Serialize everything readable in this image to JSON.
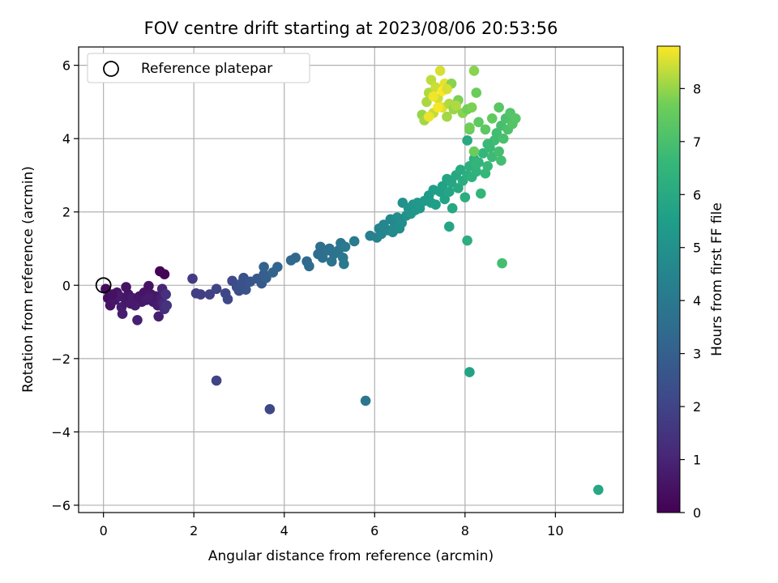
{
  "chart_data": {
    "type": "scatter",
    "title": "FOV centre drift starting at 2023/08/06 20:53:56",
    "xlabel": "Angular distance from reference (arcmin)",
    "ylabel": "Rotation from reference (arcmin)",
    "xlim": [
      -0.55,
      11.5
    ],
    "ylim": [
      -6.2,
      6.5
    ],
    "xticks": [
      0,
      2,
      4,
      6,
      8,
      10
    ],
    "yticks": [
      -6,
      -4,
      -2,
      0,
      2,
      4,
      6
    ],
    "xtick_labels": [
      "0",
      "2",
      "4",
      "6",
      "8",
      "10"
    ],
    "ytick_labels": [
      "−6",
      "−4",
      "−2",
      "0",
      "2",
      "4",
      "6"
    ],
    "grid": true,
    "legend": {
      "placement": "top-left",
      "entries": [
        {
          "label": "Reference platepar",
          "marker": "open-circle"
        }
      ]
    },
    "reference_point": {
      "x": 0,
      "y": 0
    },
    "colorbar": {
      "label": "Hours from first FF file",
      "range": [
        0,
        8.8
      ],
      "ticks": [
        0,
        1,
        2,
        3,
        4,
        5,
        6,
        7,
        8
      ],
      "tick_labels": [
        "0",
        "1",
        "2",
        "3",
        "4",
        "5",
        "6",
        "7",
        "8"
      ],
      "colormap": "viridis"
    },
    "points": [
      {
        "x": 1.25,
        "y": 0.38,
        "t": 0.05
      },
      {
        "x": 1.35,
        "y": 0.3,
        "t": 0.1
      },
      {
        "x": 0.05,
        "y": -0.1,
        "t": 0.3
      },
      {
        "x": 0.1,
        "y": -0.35,
        "t": 0.4
      },
      {
        "x": 0.15,
        "y": -0.55,
        "t": 0.5
      },
      {
        "x": 0.25,
        "y": -0.4,
        "t": 0.6
      },
      {
        "x": 0.3,
        "y": -0.2,
        "t": 0.55
      },
      {
        "x": 0.35,
        "y": -0.3,
        "t": 0.7
      },
      {
        "x": 0.4,
        "y": -0.6,
        "t": 0.75
      },
      {
        "x": 0.42,
        "y": -0.78,
        "t": 0.8
      },
      {
        "x": 0.5,
        "y": -0.45,
        "t": 0.65
      },
      {
        "x": 0.55,
        "y": -0.25,
        "t": 0.6
      },
      {
        "x": 0.5,
        "y": -0.05,
        "t": 0.5
      },
      {
        "x": 0.65,
        "y": -0.35,
        "t": 0.7
      },
      {
        "x": 0.7,
        "y": -0.55,
        "t": 0.8
      },
      {
        "x": 0.75,
        "y": -0.95,
        "t": 0.9
      },
      {
        "x": 0.8,
        "y": -0.3,
        "t": 0.6
      },
      {
        "x": 0.85,
        "y": -0.45,
        "t": 0.65
      },
      {
        "x": 0.9,
        "y": -0.2,
        "t": 0.55
      },
      {
        "x": 0.95,
        "y": -0.4,
        "t": 0.7
      },
      {
        "x": 1.0,
        "y": -0.02,
        "t": 0.5
      },
      {
        "x": 1.05,
        "y": -0.25,
        "t": 0.6
      },
      {
        "x": 1.1,
        "y": -0.45,
        "t": 0.7
      },
      {
        "x": 1.15,
        "y": -0.3,
        "t": 0.65
      },
      {
        "x": 1.2,
        "y": -0.55,
        "t": 0.8
      },
      {
        "x": 1.22,
        "y": -0.85,
        "t": 0.85
      },
      {
        "x": 1.28,
        "y": -0.35,
        "t": 0.9
      },
      {
        "x": 1.3,
        "y": -0.1,
        "t": 1.0
      },
      {
        "x": 1.32,
        "y": -0.5,
        "t": 1.1
      },
      {
        "x": 1.35,
        "y": -0.65,
        "t": 1.3
      },
      {
        "x": 1.38,
        "y": -0.25,
        "t": 1.4
      },
      {
        "x": 1.4,
        "y": -0.55,
        "t": 1.5
      },
      {
        "x": 0.2,
        "y": -0.25,
        "t": 0.45
      },
      {
        "x": 0.6,
        "y": -0.5,
        "t": 0.7
      },
      {
        "x": 1.0,
        "y": -0.35,
        "t": 0.75
      },
      {
        "x": 1.97,
        "y": 0.18,
        "t": 1.7
      },
      {
        "x": 2.05,
        "y": -0.22,
        "t": 1.8
      },
      {
        "x": 2.15,
        "y": -0.25,
        "t": 1.85
      },
      {
        "x": 2.35,
        "y": -0.25,
        "t": 1.9
      },
      {
        "x": 2.5,
        "y": -0.1,
        "t": 2.0
      },
      {
        "x": 2.7,
        "y": -0.22,
        "t": 2.1
      },
      {
        "x": 2.75,
        "y": -0.38,
        "t": 2.15
      },
      {
        "x": 2.85,
        "y": 0.12,
        "t": 2.2
      },
      {
        "x": 2.95,
        "y": -0.05,
        "t": 2.3
      },
      {
        "x": 3.0,
        "y": -0.15,
        "t": 2.4
      },
      {
        "x": 3.05,
        "y": 0.05,
        "t": 2.45
      },
      {
        "x": 3.1,
        "y": 0.2,
        "t": 2.5
      },
      {
        "x": 3.15,
        "y": -0.12,
        "t": 2.55
      },
      {
        "x": 3.25,
        "y": 0.1,
        "t": 2.6
      },
      {
        "x": 3.4,
        "y": 0.18,
        "t": 2.7
      },
      {
        "x": 3.5,
        "y": 0.05,
        "t": 2.8
      },
      {
        "x": 3.55,
        "y": 0.3,
        "t": 2.9
      },
      {
        "x": 3.6,
        "y": 0.2,
        "t": 3.0
      },
      {
        "x": 3.55,
        "y": 0.5,
        "t": 3.1
      },
      {
        "x": 3.75,
        "y": 0.35,
        "t": 3.15
      },
      {
        "x": 3.85,
        "y": 0.5,
        "t": 3.2
      },
      {
        "x": 4.15,
        "y": 0.68,
        "t": 3.3
      },
      {
        "x": 4.25,
        "y": 0.75,
        "t": 3.35
      },
      {
        "x": 4.5,
        "y": 0.65,
        "t": 3.4
      },
      {
        "x": 4.55,
        "y": 0.52,
        "t": 3.45
      },
      {
        "x": 4.75,
        "y": 0.85,
        "t": 3.5
      },
      {
        "x": 4.8,
        "y": 1.05,
        "t": 3.55
      },
      {
        "x": 4.85,
        "y": 0.75,
        "t": 3.6
      },
      {
        "x": 4.95,
        "y": 0.95,
        "t": 3.65
      },
      {
        "x": 5.0,
        "y": 1.0,
        "t": 3.7
      },
      {
        "x": 5.05,
        "y": 0.65,
        "t": 3.75
      },
      {
        "x": 5.1,
        "y": 0.85,
        "t": 3.8
      },
      {
        "x": 5.2,
        "y": 0.95,
        "t": 3.85
      },
      {
        "x": 5.25,
        "y": 1.15,
        "t": 3.9
      },
      {
        "x": 5.3,
        "y": 0.75,
        "t": 3.95
      },
      {
        "x": 5.35,
        "y": 1.05,
        "t": 4.0
      },
      {
        "x": 5.32,
        "y": 0.58,
        "t": 4.0
      },
      {
        "x": 5.55,
        "y": 1.2,
        "t": 4.1
      },
      {
        "x": 5.9,
        "y": 1.35,
        "t": 4.3
      },
      {
        "x": 6.05,
        "y": 1.3,
        "t": 4.4
      },
      {
        "x": 6.1,
        "y": 1.55,
        "t": 4.45
      },
      {
        "x": 6.15,
        "y": 1.4,
        "t": 4.5
      },
      {
        "x": 6.2,
        "y": 1.65,
        "t": 4.55
      },
      {
        "x": 6.3,
        "y": 1.5,
        "t": 4.6
      },
      {
        "x": 6.35,
        "y": 1.8,
        "t": 4.65
      },
      {
        "x": 6.4,
        "y": 1.45,
        "t": 4.7
      },
      {
        "x": 6.45,
        "y": 1.65,
        "t": 4.75
      },
      {
        "x": 6.5,
        "y": 1.85,
        "t": 4.8
      },
      {
        "x": 6.55,
        "y": 1.55,
        "t": 4.85
      },
      {
        "x": 6.6,
        "y": 1.7,
        "t": 4.9
      },
      {
        "x": 6.62,
        "y": 2.25,
        "t": 4.95
      },
      {
        "x": 6.7,
        "y": 1.9,
        "t": 5.0
      },
      {
        "x": 6.75,
        "y": 2.1,
        "t": 5.05
      },
      {
        "x": 6.8,
        "y": 1.95,
        "t": 5.1
      },
      {
        "x": 6.85,
        "y": 2.2,
        "t": 5.15
      },
      {
        "x": 6.9,
        "y": 2.05,
        "t": 5.2
      },
      {
        "x": 6.95,
        "y": 2.25,
        "t": 5.25
      },
      {
        "x": 7.0,
        "y": 2.1,
        "t": 5.3
      },
      {
        "x": 7.1,
        "y": 2.3,
        "t": 5.35
      },
      {
        "x": 7.2,
        "y": 2.45,
        "t": 5.4
      },
      {
        "x": 7.25,
        "y": 2.25,
        "t": 5.45
      },
      {
        "x": 7.3,
        "y": 2.6,
        "t": 5.5
      },
      {
        "x": 7.35,
        "y": 2.2,
        "t": 5.55
      },
      {
        "x": 7.45,
        "y": 2.55,
        "t": 5.6
      },
      {
        "x": 7.5,
        "y": 2.7,
        "t": 5.65
      },
      {
        "x": 7.55,
        "y": 2.35,
        "t": 5.7
      },
      {
        "x": 7.6,
        "y": 2.9,
        "t": 5.75
      },
      {
        "x": 7.65,
        "y": 2.55,
        "t": 5.8
      },
      {
        "x": 7.7,
        "y": 2.8,
        "t": 5.85
      },
      {
        "x": 7.72,
        "y": 2.1,
        "t": 5.9
      },
      {
        "x": 7.8,
        "y": 3.0,
        "t": 5.95
      },
      {
        "x": 7.85,
        "y": 2.65,
        "t": 6.0
      },
      {
        "x": 7.9,
        "y": 3.15,
        "t": 6.05
      },
      {
        "x": 7.95,
        "y": 2.85,
        "t": 6.1
      },
      {
        "x": 8.0,
        "y": 2.4,
        "t": 6.15
      },
      {
        "x": 8.05,
        "y": 3.0,
        "t": 6.2
      },
      {
        "x": 8.1,
        "y": 3.25,
        "t": 6.25
      },
      {
        "x": 8.15,
        "y": 2.95,
        "t": 6.3
      },
      {
        "x": 8.2,
        "y": 3.45,
        "t": 6.35
      },
      {
        "x": 8.25,
        "y": 3.1,
        "t": 6.4
      },
      {
        "x": 8.3,
        "y": 3.35,
        "t": 6.45
      },
      {
        "x": 8.35,
        "y": 2.5,
        "t": 6.5
      },
      {
        "x": 8.4,
        "y": 3.6,
        "t": 6.55
      },
      {
        "x": 8.45,
        "y": 3.05,
        "t": 6.6
      },
      {
        "x": 8.5,
        "y": 3.25,
        "t": 6.65
      },
      {
        "x": 8.55,
        "y": 3.75,
        "t": 6.7
      },
      {
        "x": 8.6,
        "y": 3.5,
        "t": 6.75
      },
      {
        "x": 8.65,
        "y": 3.95,
        "t": 6.8
      },
      {
        "x": 8.7,
        "y": 4.15,
        "t": 6.85
      },
      {
        "x": 8.75,
        "y": 3.65,
        "t": 6.9
      },
      {
        "x": 8.8,
        "y": 4.35,
        "t": 6.95
      },
      {
        "x": 8.85,
        "y": 4.0,
        "t": 7.0
      },
      {
        "x": 8.9,
        "y": 4.55,
        "t": 7.05
      },
      {
        "x": 8.95,
        "y": 4.25,
        "t": 7.1
      },
      {
        "x": 9.0,
        "y": 4.7,
        "t": 7.15
      },
      {
        "x": 9.05,
        "y": 4.4,
        "t": 7.2
      },
      {
        "x": 9.12,
        "y": 4.55,
        "t": 7.25
      },
      {
        "x": 8.75,
        "y": 4.85,
        "t": 7.3
      },
      {
        "x": 8.45,
        "y": 4.25,
        "t": 7.35
      },
      {
        "x": 8.3,
        "y": 4.45,
        "t": 7.4
      },
      {
        "x": 8.6,
        "y": 4.55,
        "t": 7.45
      },
      {
        "x": 8.05,
        "y": 3.95,
        "t": 6.0
      },
      {
        "x": 8.1,
        "y": 4.25,
        "t": 7.55
      },
      {
        "x": 8.2,
        "y": 3.65,
        "t": 7.6
      },
      {
        "x": 8.5,
        "y": 3.85,
        "t": 6.7
      },
      {
        "x": 8.8,
        "y": 3.4,
        "t": 6.9
      },
      {
        "x": 8.25,
        "y": 3.3,
        "t": 6.5
      },
      {
        "x": 7.65,
        "y": 1.6,
        "t": 5.8
      },
      {
        "x": 8.05,
        "y": 1.22,
        "t": 6.2
      },
      {
        "x": 8.82,
        "y": 0.6,
        "t": 6.9
      },
      {
        "x": 7.05,
        "y": 4.65,
        "t": 8.0
      },
      {
        "x": 7.1,
        "y": 4.5,
        "t": 8.1
      },
      {
        "x": 7.15,
        "y": 5.0,
        "t": 8.15
      },
      {
        "x": 7.2,
        "y": 5.25,
        "t": 8.2
      },
      {
        "x": 7.25,
        "y": 5.6,
        "t": 8.3
      },
      {
        "x": 7.3,
        "y": 4.7,
        "t": 8.35
      },
      {
        "x": 7.35,
        "y": 5.4,
        "t": 8.4
      },
      {
        "x": 7.4,
        "y": 5.1,
        "t": 8.45
      },
      {
        "x": 7.45,
        "y": 5.85,
        "t": 8.5
      },
      {
        "x": 7.5,
        "y": 4.85,
        "t": 8.55
      },
      {
        "x": 7.55,
        "y": 5.5,
        "t": 8.6
      },
      {
        "x": 7.6,
        "y": 4.6,
        "t": 8.1
      },
      {
        "x": 7.65,
        "y": 4.95,
        "t": 8.2
      },
      {
        "x": 7.7,
        "y": 5.5,
        "t": 7.9
      },
      {
        "x": 7.75,
        "y": 4.8,
        "t": 8.0
      },
      {
        "x": 7.85,
        "y": 5.05,
        "t": 7.8
      },
      {
        "x": 7.95,
        "y": 4.7,
        "t": 7.9
      },
      {
        "x": 8.05,
        "y": 4.8,
        "t": 7.7
      },
      {
        "x": 8.15,
        "y": 4.85,
        "t": 7.8
      },
      {
        "x": 8.2,
        "y": 5.85,
        "t": 7.9
      },
      {
        "x": 8.25,
        "y": 5.25,
        "t": 7.6
      },
      {
        "x": 8.1,
        "y": 4.3,
        "t": 7.7
      },
      {
        "x": 7.3,
        "y": 5.15,
        "t": 8.7
      },
      {
        "x": 7.4,
        "y": 4.85,
        "t": 8.75
      },
      {
        "x": 7.2,
        "y": 4.6,
        "t": 8.65
      },
      {
        "x": 7.5,
        "y": 5.3,
        "t": 8.8
      },
      {
        "x": 7.6,
        "y": 5.35,
        "t": 8.5
      },
      {
        "x": 7.8,
        "y": 4.9,
        "t": 8.2
      },
      {
        "x": 2.5,
        "y": -2.6,
        "t": 2.0
      },
      {
        "x": 3.68,
        "y": -3.38,
        "t": 2.1
      },
      {
        "x": 5.8,
        "y": -3.15,
        "t": 3.9
      },
      {
        "x": 8.1,
        "y": -2.37,
        "t": 5.7
      },
      {
        "x": 10.95,
        "y": -5.58,
        "t": 5.9
      }
    ]
  }
}
